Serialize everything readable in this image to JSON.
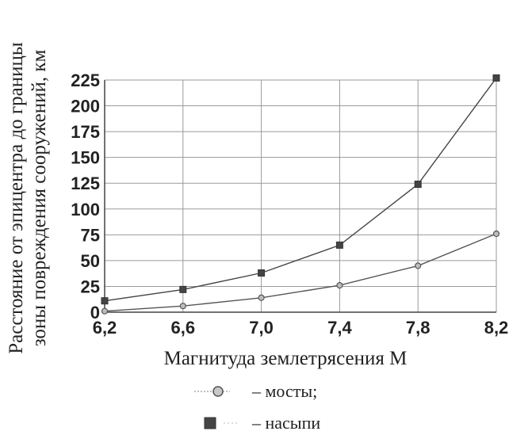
{
  "chart_data": {
    "type": "line",
    "xlabel": "Магнитуда землетрясения М",
    "ylabel": [
      "Расстояние от эпицентра до границы",
      "зоны повреждения сооружений, км"
    ],
    "x": [
      6.2,
      6.6,
      7.0,
      7.4,
      7.8,
      8.2
    ],
    "x_tick_labels": [
      "6,2",
      "6,6",
      "7,0",
      "7,4",
      "7,8",
      "8,2"
    ],
    "y_ticks": [
      0,
      25,
      50,
      75,
      100,
      125,
      150,
      175,
      200,
      225
    ],
    "xlim": [
      6.2,
      8.2
    ],
    "ylim": [
      0,
      225
    ],
    "grid": true,
    "legend_position": "bottom",
    "series": [
      {
        "name": "– мосты;",
        "values": [
          1,
          6,
          14,
          26,
          45,
          76
        ],
        "marker": "circle",
        "color": "#555555"
      },
      {
        "name": "– насыпи",
        "values": [
          11,
          22,
          38,
          65,
          124,
          227
        ],
        "marker": "square",
        "color": "#444444"
      }
    ]
  }
}
